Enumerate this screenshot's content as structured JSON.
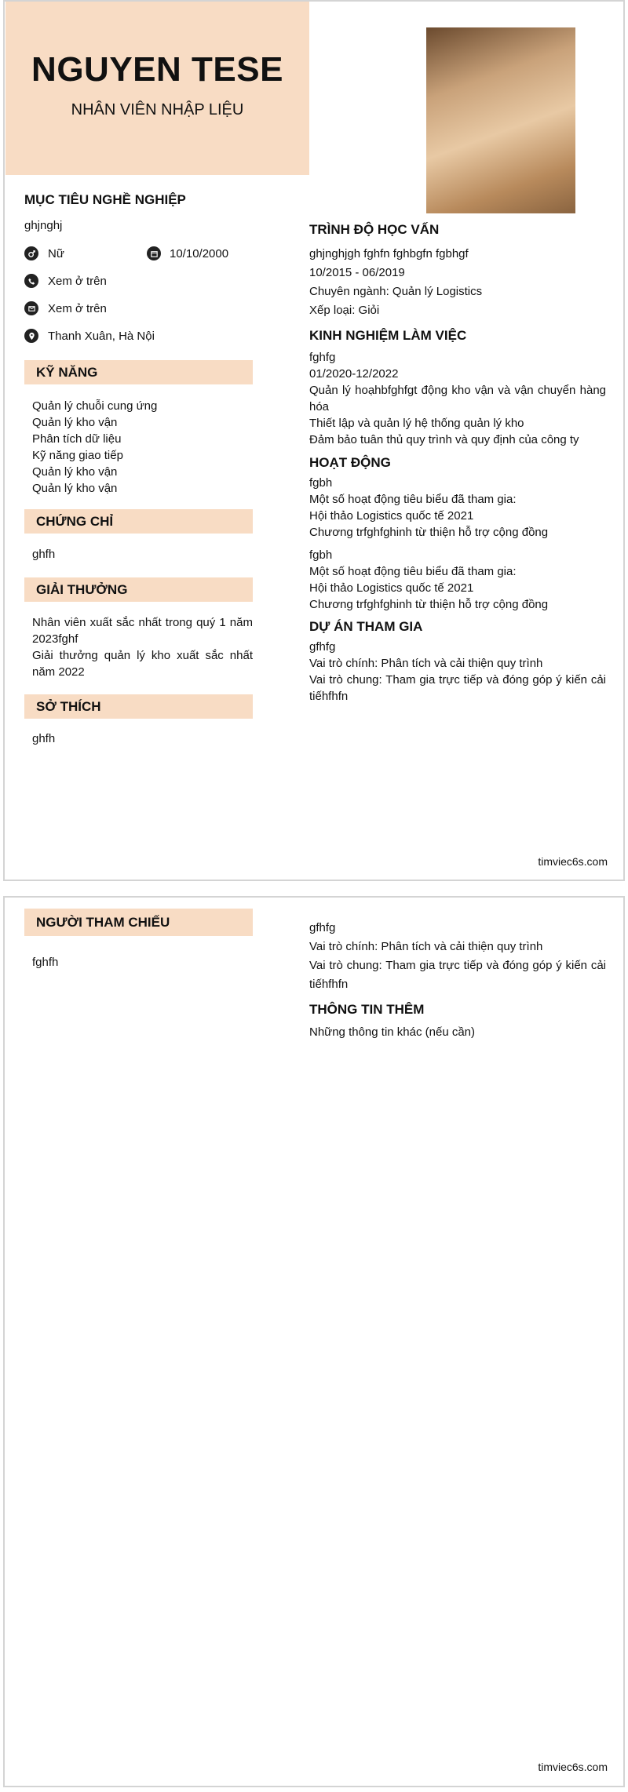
{
  "header": {
    "name": "NGUYEN TESE",
    "position": "NHÂN VIÊN NHẬP LIỆU"
  },
  "objective": {
    "heading": "MỤC TIÊU NGHỀ NGHIỆP",
    "text": "ghjnghj"
  },
  "contact": {
    "gender": "Nữ",
    "dob": "10/10/2000",
    "phone": "Xem ở trên",
    "email": "Xem ở trên",
    "address": "Thanh Xuân, Hà Nội"
  },
  "skills": {
    "heading": "KỸ NĂNG",
    "items": [
      "Quản lý chuỗi cung ứng",
      "Quản lý kho vận",
      "Phân tích dữ liệu",
      "Kỹ năng giao tiếp",
      "Quản lý kho vận",
      "Quản lý kho vận"
    ]
  },
  "certificates": {
    "heading": "CHỨNG CHỈ",
    "text": "ghfh"
  },
  "awards": {
    "heading": "GIẢI THƯỞNG",
    "items": [
      "Nhân viên xuất sắc nhất trong quý 1 năm 2023fghf",
      "Giải thưởng quản lý kho xuất sắc nhất năm 2022"
    ]
  },
  "hobbies": {
    "heading": "SỞ THÍCH",
    "text": "ghfh"
  },
  "education": {
    "heading": "TRÌNH ĐỘ HỌC VẤN",
    "lines": [
      "ghjnghjgh fghfn fghbgfn fgbhgf",
      "10/2015 - 06/2019",
      "Chuyên ngành: Quản lý Logistics",
      "Xếp loại: Giỏi"
    ]
  },
  "experience": {
    "heading": "KINH NGHIỆM LÀM VIỆC",
    "lines": [
      "fghfg",
      "01/2020-12/2022",
      "Quản lý hoạhbfghfgt động kho vận và vận chuyển hàng hóa",
      "Thiết lập và quản lý hệ thống quản lý kho",
      "Đảm bảo tuân thủ quy trình và quy định của công ty"
    ]
  },
  "activities": {
    "heading": "HOẠT ĐỘNG",
    "groups": [
      [
        "fgbh",
        "Một số hoạt động tiêu biểu đã tham gia:",
        "Hội thảo Logistics quốc tế 2021",
        "Chương trfghfghinh từ thiện hỗ trợ cộng đồng"
      ],
      [
        "fgbh",
        "Một số hoạt động tiêu biểu đã tham gia:",
        "Hội thảo Logistics quốc tế 2021",
        "Chương trfghfghinh từ thiện hỗ trợ cộng đồng"
      ]
    ]
  },
  "projects": {
    "heading": "DỰ ÁN THAM GIA",
    "lines": [
      "gfhfg",
      "Vai trò chính: Phân tích và cải thiện quy trình",
      "Vai trò chung: Tham gia trực tiếp và đóng góp ý kiến cải tiếhfhfn"
    ]
  },
  "references": {
    "heading": "NGƯỜI THAM CHIẾU",
    "text": "fghfh"
  },
  "projects2": {
    "lines": [
      "gfhfg",
      "Vai trò chính: Phân tích và cải thiện quy trình",
      "Vai trò chung: Tham gia trực tiếp và đóng góp ý kiến cải tiếhfhfn"
    ]
  },
  "extra": {
    "heading": "THÔNG TIN THÊM",
    "text": "Những thông tin khác (nếu cần)"
  },
  "footer": {
    "site": "timviec6s.com"
  },
  "colors": {
    "accent": "#f8dcc4"
  }
}
